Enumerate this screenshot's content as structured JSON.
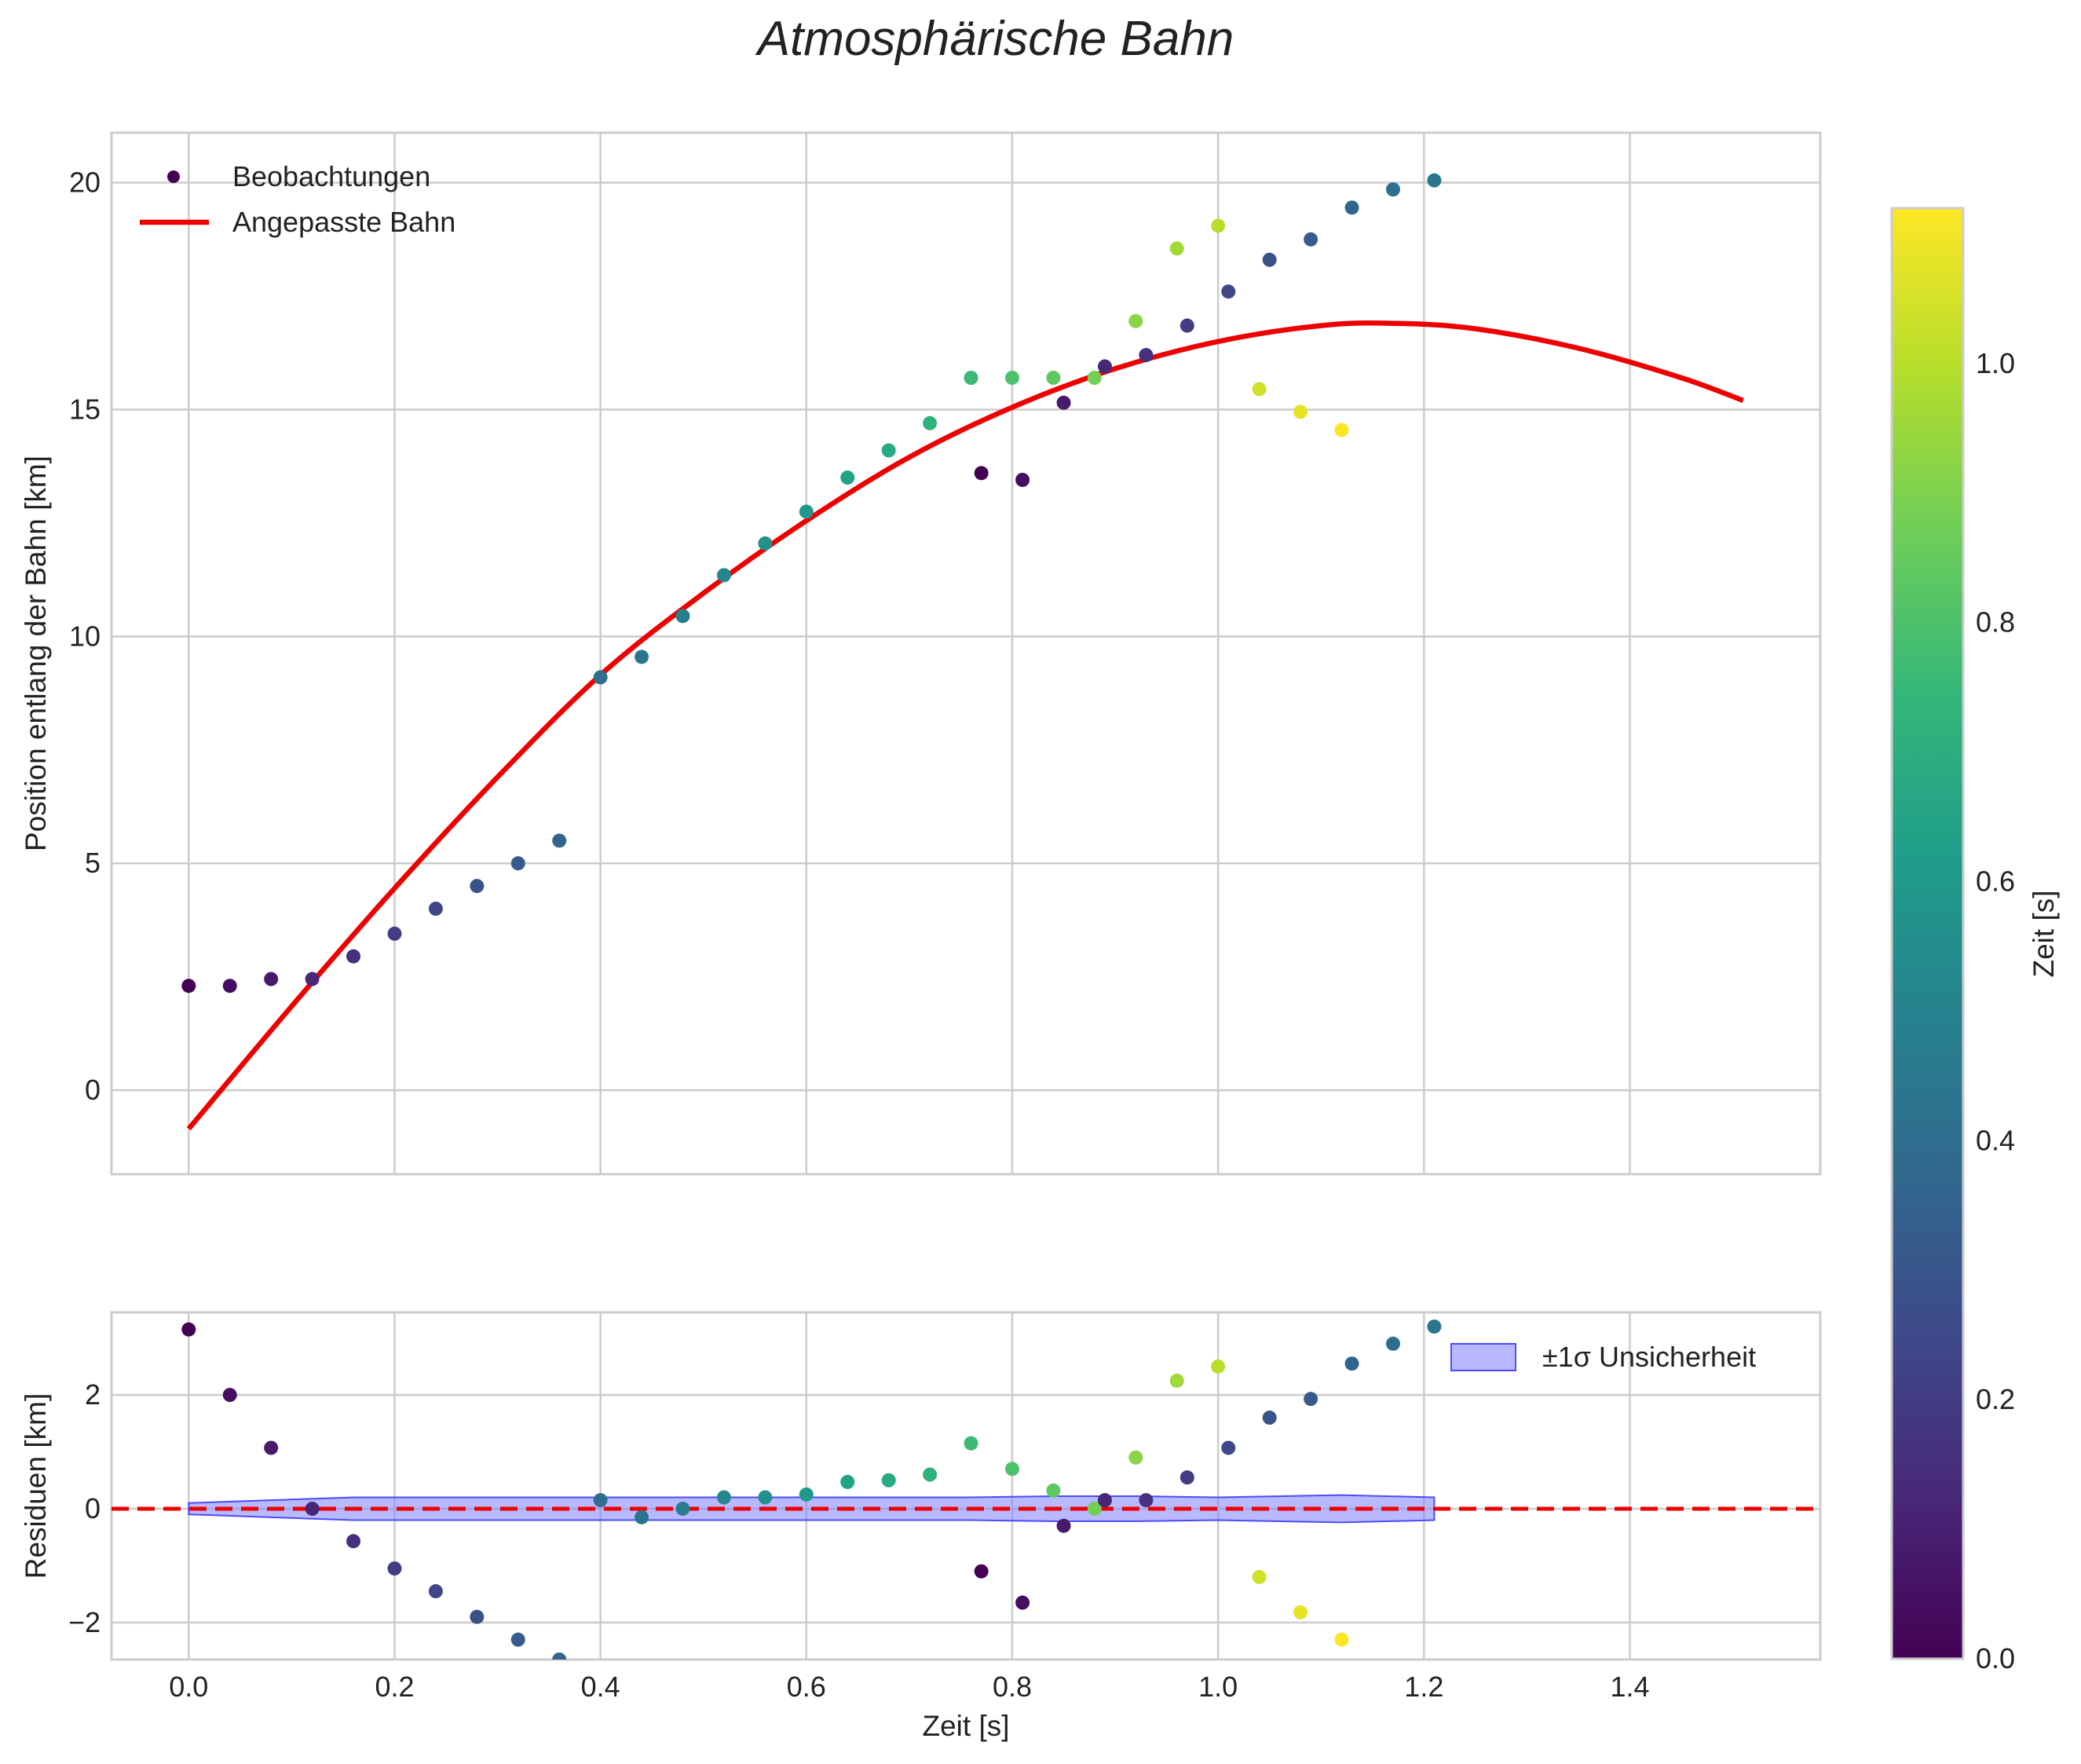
{
  "chart_data": {
    "type": "scatter",
    "title": "Atmosphärische Bahn",
    "colorscale": [
      "#440154",
      "#482878",
      "#3e4989",
      "#31688e",
      "#26828e",
      "#1f9e89",
      "#35b779",
      "#6ece58",
      "#b5de2b",
      "#fde725"
    ],
    "top": {
      "ylabel": "Position entlang der Bahn [km]",
      "ylim": [
        -1.85,
        21.1
      ],
      "yticks": [
        0,
        5,
        10,
        15,
        20
      ],
      "legend": {
        "position": "top-left",
        "observations": "Beobachtungen",
        "fit": "Angepasste Bahn"
      },
      "fit_color": "#ee0000",
      "fit_curve": {
        "x": [
          0.0,
          0.1,
          0.2,
          0.3,
          0.4,
          0.5,
          0.6,
          0.7,
          0.8,
          0.9,
          1.0,
          1.1,
          1.17,
          1.25,
          1.35,
          1.45,
          1.51
        ],
        "y": [
          -0.85,
          1.85,
          4.45,
          6.9,
          9.15,
          10.95,
          12.55,
          13.95,
          15.05,
          15.9,
          16.5,
          16.85,
          16.9,
          16.78,
          16.35,
          15.7,
          15.2
        ]
      },
      "observations": {
        "x": [
          0.0,
          0.04,
          0.08,
          0.12,
          0.16,
          0.2,
          0.24,
          0.28,
          0.32,
          0.36,
          0.4,
          0.44,
          0.48,
          0.52,
          0.56,
          0.6,
          0.64,
          0.68,
          0.72,
          0.76,
          0.8,
          0.84,
          0.88,
          0.92,
          0.96,
          1.0,
          1.04,
          1.08,
          1.12,
          0.77,
          0.81,
          0.85,
          0.89,
          0.93,
          0.97,
          1.01,
          1.05,
          1.09,
          1.13,
          1.17,
          1.21
        ],
        "y": [
          2.3,
          2.3,
          2.45,
          2.45,
          2.95,
          3.45,
          4.0,
          4.5,
          5.0,
          5.5,
          9.1,
          9.55,
          10.45,
          11.35,
          12.05,
          12.75,
          13.5,
          14.1,
          14.7,
          15.7,
          15.7,
          15.7,
          15.7,
          16.95,
          18.55,
          19.05,
          15.45,
          14.95,
          14.55,
          13.6,
          13.45,
          15.15,
          15.95,
          16.2,
          16.85,
          17.6,
          18.3,
          18.75,
          19.45,
          19.85,
          20.05
        ],
        "c": [
          0.0,
          0.04,
          0.08,
          0.12,
          0.16,
          0.2,
          0.24,
          0.28,
          0.32,
          0.36,
          0.4,
          0.44,
          0.48,
          0.52,
          0.56,
          0.6,
          0.64,
          0.68,
          0.72,
          0.76,
          0.8,
          0.84,
          0.88,
          0.92,
          0.96,
          1.0,
          1.04,
          1.08,
          1.12,
          0.0,
          0.04,
          0.08,
          0.12,
          0.16,
          0.2,
          0.24,
          0.28,
          0.32,
          0.36,
          0.4,
          0.44
        ]
      }
    },
    "bottom": {
      "xlabel": "Zeit [s]",
      "ylabel": "Residuen [km]",
      "xlim": [
        -0.075,
        1.585
      ],
      "xticks": [
        0.0,
        0.2,
        0.4,
        0.6,
        0.8,
        1.0,
        1.2,
        1.4
      ],
      "ylim": [
        -2.65,
        3.45
      ],
      "yticks": [
        -2,
        0,
        2
      ],
      "zero_line_color": "#ee0000",
      "band_label": "±1σ Unsicherheit",
      "band_color": "#7f7fff",
      "band_edge_color": "#4b4bff",
      "band": {
        "x": [
          0.0,
          0.08,
          0.16,
          0.24,
          0.4,
          0.6,
          0.76,
          0.84,
          0.92,
          1.0,
          1.12,
          1.21
        ],
        "half_width": [
          0.1,
          0.15,
          0.2,
          0.2,
          0.2,
          0.2,
          0.2,
          0.22,
          0.22,
          0.2,
          0.24,
          0.2
        ]
      },
      "residuals": [
        3.15,
        2.0,
        1.07,
        0.0,
        -0.57,
        -1.05,
        -1.45,
        -1.9,
        -2.3,
        -2.65,
        0.15,
        -0.15,
        0.0,
        0.2,
        0.2,
        0.25,
        0.47,
        0.5,
        0.6,
        1.15,
        0.7,
        0.32,
        0.0,
        0.9,
        2.25,
        2.5,
        -1.2,
        -1.82,
        -2.3,
        -1.1,
        -1.65,
        -0.3,
        0.15,
        0.15,
        0.55,
        1.07,
        1.6,
        1.93,
        2.55,
        2.9,
        3.2
      ]
    },
    "colorbar": {
      "label": "Zeit [s]",
      "range": [
        0.0,
        1.12
      ],
      "ticks": [
        0.0,
        0.2,
        0.4,
        0.6,
        0.8,
        1.0
      ]
    }
  }
}
